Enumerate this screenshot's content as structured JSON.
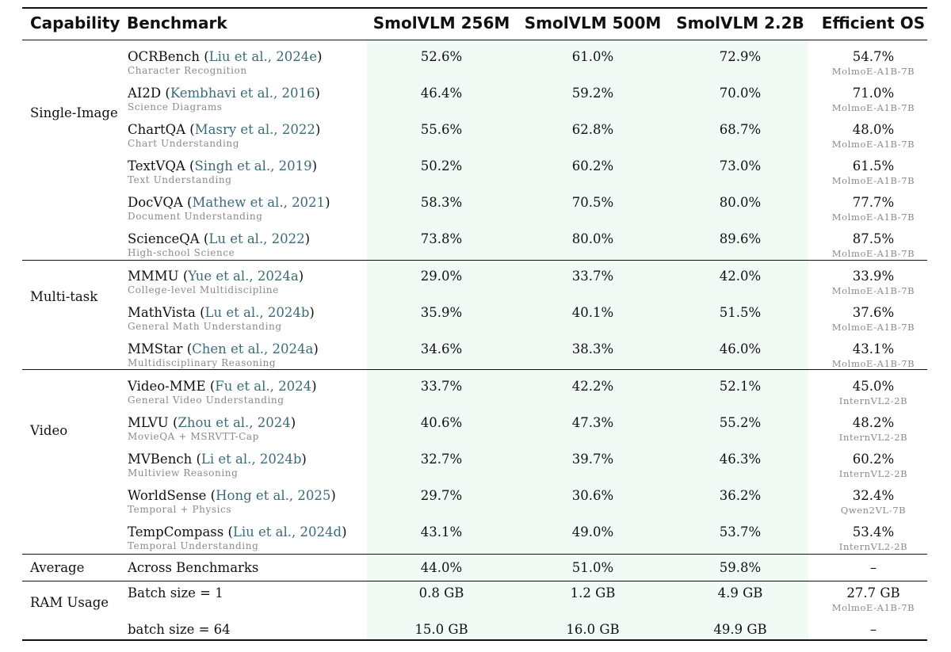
{
  "headers": {
    "capability": "Capability",
    "benchmark": "Benchmark",
    "m256": "SmolVLM 256M",
    "m500": "SmolVLM 500M",
    "m22": "SmolVLM 2.2B",
    "eos": "Efficient OS"
  },
  "groups": {
    "single": "Single-Image",
    "multi": "Multi-task",
    "video": "Video",
    "average": "Average",
    "ram": "RAM Usage"
  },
  "rows": [
    {
      "name": "OCRBench",
      "cite": "Liu et al., 2024e",
      "sub": "Character Recognition",
      "v256": "52.6%",
      "v500": "61.0%",
      "v22": "72.9%",
      "eos": "54.7%",
      "eos_model": "MolmoE-A1B-7B"
    },
    {
      "name": "AI2D",
      "cite": "Kembhavi et al., 2016",
      "sub": "Science Diagrams",
      "v256": "46.4%",
      "v500": "59.2%",
      "v22": "70.0%",
      "eos": "71.0%",
      "eos_model": "MolmoE-A1B-7B"
    },
    {
      "name": "ChartQA",
      "cite": "Masry et al., 2022",
      "sub": "Chart Understanding",
      "v256": "55.6%",
      "v500": "62.8%",
      "v22": "68.7%",
      "eos": "48.0%",
      "eos_model": "MolmoE-A1B-7B"
    },
    {
      "name": "TextVQA",
      "cite": "Singh et al., 2019",
      "sub": "Text Understanding",
      "v256": "50.2%",
      "v500": "60.2%",
      "v22": "73.0%",
      "eos": "61.5%",
      "eos_model": "MolmoE-A1B-7B"
    },
    {
      "name": "DocVQA",
      "cite": "Mathew et al., 2021",
      "sub": "Document Understanding",
      "v256": "58.3%",
      "v500": "70.5%",
      "v22": "80.0%",
      "eos": "77.7%",
      "eos_model": "MolmoE-A1B-7B"
    },
    {
      "name": "ScienceQA",
      "cite": "Lu et al., 2022",
      "sub": "High-school Science",
      "v256": "73.8%",
      "v500": "80.0%",
      "v22": "89.6%",
      "eos": "87.5%",
      "eos_model": "MolmoE-A1B-7B"
    },
    {
      "name": "MMMU",
      "cite": "Yue et al., 2024a",
      "sub": "College-level Multidiscipline",
      "v256": "29.0%",
      "v500": "33.7%",
      "v22": "42.0%",
      "eos": "33.9%",
      "eos_model": "MolmoE-A1B-7B"
    },
    {
      "name": "MathVista",
      "cite": "Lu et al., 2024b",
      "sub": "General Math Understanding",
      "v256": "35.9%",
      "v500": "40.1%",
      "v22": "51.5%",
      "eos": "37.6%",
      "eos_model": "MolmoE-A1B-7B"
    },
    {
      "name": "MMStar",
      "cite": "Chen et al., 2024a",
      "sub": "Multidisciplinary Reasoning",
      "v256": "34.6%",
      "v500": "38.3%",
      "v22": "46.0%",
      "eos": "43.1%",
      "eos_model": "MolmoE-A1B-7B"
    },
    {
      "name": "Video-MME",
      "cite": "Fu et al., 2024",
      "sub": "General Video Understanding",
      "v256": "33.7%",
      "v500": "42.2%",
      "v22": "52.1%",
      "eos": "45.0%",
      "eos_model": "InternVL2-2B"
    },
    {
      "name": "MLVU",
      "cite": "Zhou et al., 2024",
      "sub": "MovieQA + MSRVTT-Cap",
      "v256": "40.6%",
      "v500": "47.3%",
      "v22": "55.2%",
      "eos": "48.2%",
      "eos_model": "InternVL2-2B"
    },
    {
      "name": "MVBench",
      "cite": "Li et al., 2024b",
      "sub": "Multiview Reasoning",
      "v256": "32.7%",
      "v500": "39.7%",
      "v22": "46.3%",
      "eos": "60.2%",
      "eos_model": "InternVL2-2B"
    },
    {
      "name": "WorldSense",
      "cite": "Hong et al., 2025",
      "sub": "Temporal + Physics",
      "v256": "29.7%",
      "v500": "30.6%",
      "v22": "36.2%",
      "eos": "32.4%",
      "eos_model": "Qwen2VL-7B"
    },
    {
      "name": "TempCompass",
      "cite": "Liu et al., 2024d",
      "sub": "Temporal Understanding",
      "v256": "43.1%",
      "v500": "49.0%",
      "v22": "53.7%",
      "eos": "53.4%",
      "eos_model": "InternVL2-2B"
    }
  ],
  "average": {
    "bench": "Across Benchmarks",
    "v256": "44.0%",
    "v500": "51.0%",
    "v22": "59.8%",
    "eos": "–"
  },
  "ram": [
    {
      "bench": "Batch size = 1",
      "v256": "0.8 GB",
      "v500": "1.2 GB",
      "v22": "4.9 GB",
      "eos": "27.7 GB",
      "eos_model": "MolmoE-A1B-7B"
    },
    {
      "bench": "batch size = 64",
      "v256": "15.0 GB",
      "v500": "16.0 GB",
      "v22": "49.9 GB",
      "eos": "–",
      "eos_model": ""
    }
  ]
}
